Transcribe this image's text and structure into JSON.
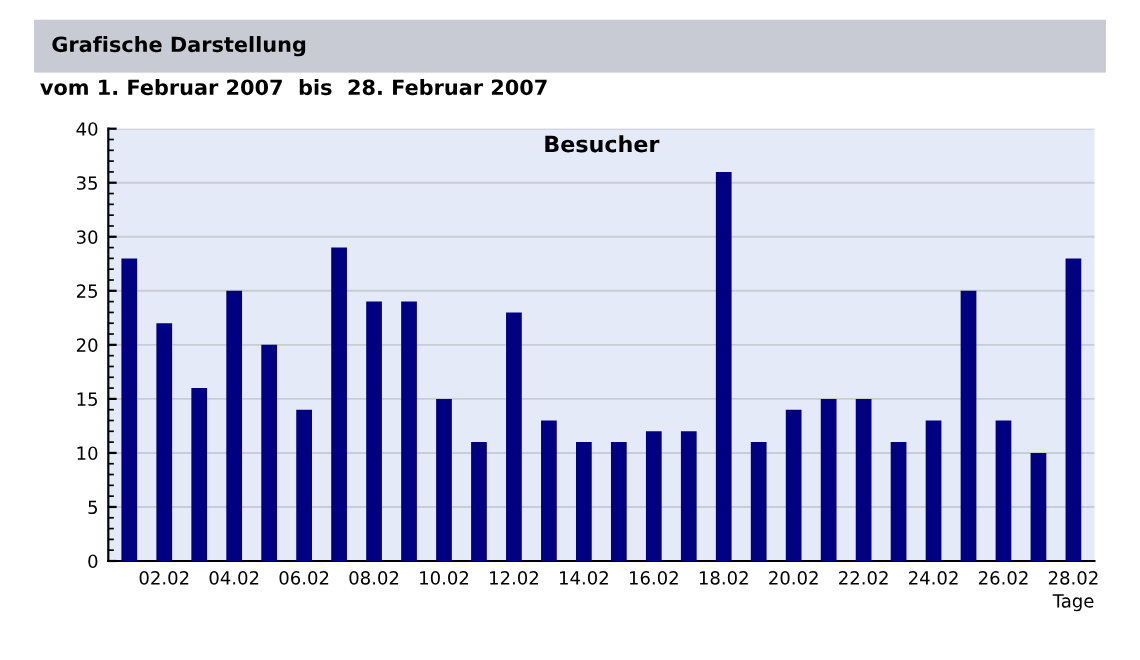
{
  "chart_data": {
    "type": "bar",
    "title": "Grafische Darstellung",
    "subtitle": "vom 1. Februar 2007  bis  28. Februar 2007",
    "annotations": [
      "Besucher"
    ],
    "xlabel": "Tage",
    "categories": [
      null,
      "02.02",
      null,
      "04.02",
      null,
      "06.02",
      null,
      "08.02",
      null,
      "10.02",
      null,
      "12.02",
      null,
      "14.02",
      null,
      "16.02",
      null,
      "18.02",
      null,
      "20.02",
      null,
      "22.02",
      null,
      "24.02",
      null,
      "26.02",
      null,
      "28.02"
    ],
    "values": [
      28,
      22,
      16,
      25,
      20,
      14,
      29,
      24,
      24,
      15,
      11,
      23,
      13,
      11,
      11,
      12,
      12,
      36,
      11,
      14,
      15,
      15,
      11,
      13,
      25,
      13,
      10,
      28
    ],
    "color": "#000080",
    "ylim": [
      0,
      40
    ],
    "yticks": [
      0,
      5,
      10,
      15,
      20,
      25,
      30,
      35,
      40
    ],
    "grid": "y"
  }
}
